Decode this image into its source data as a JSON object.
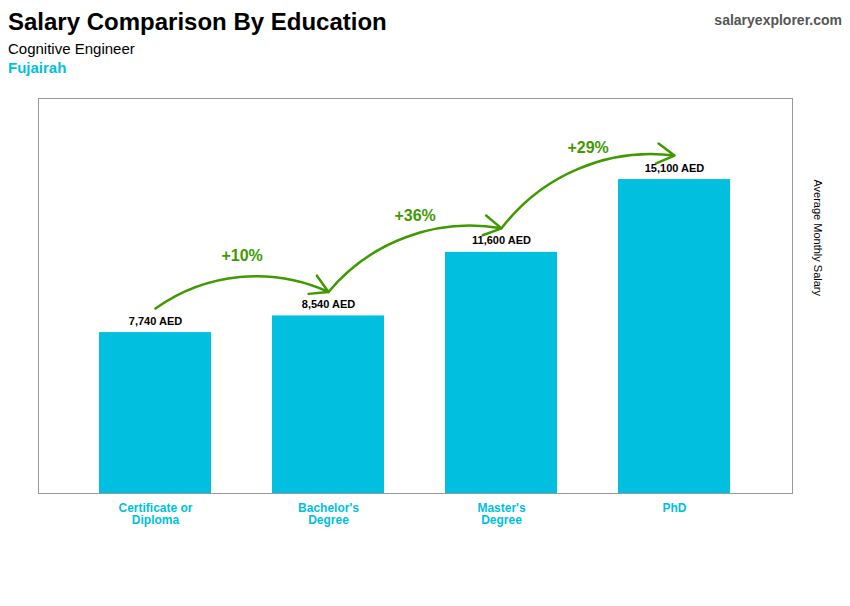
{
  "chart_data": {
    "type": "bar",
    "title": "Salary Comparison By Education",
    "subtitle": [
      "Cognitive Engineer",
      "Fujairah"
    ],
    "source": "salaryexplorer.com",
    "ylabel": "Average Monthly Salary",
    "categories": [
      "Certificate or\nDiploma",
      "Bachelor's\nDegree",
      "Master's\nDegree",
      "PhD"
    ],
    "values": [
      7740,
      8540,
      11600,
      15100
    ],
    "value_labels": [
      "7,740 AED",
      "8,540 AED",
      "11,600 AED",
      "15,100 AED"
    ],
    "data_labels": true,
    "annotations": [
      "+10%",
      "+36%",
      "+29%"
    ],
    "color": "#00BFDF",
    "ylim": [
      0,
      19000
    ],
    "yticks": [],
    "tick_labels": "x",
    "grid": false
  }
}
